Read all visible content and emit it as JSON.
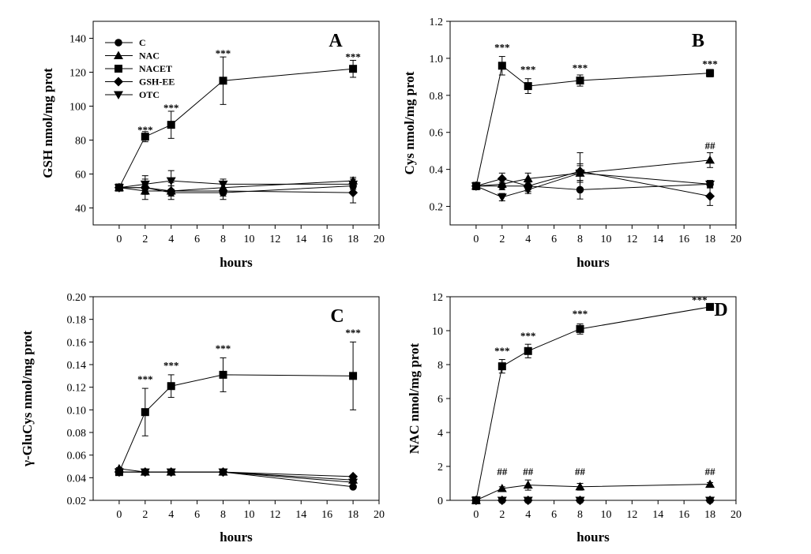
{
  "figure": {
    "title": ""
  },
  "legend": {
    "entries": [
      {
        "name": "C",
        "marker": "circle"
      },
      {
        "name": "NAC",
        "marker": "triangle-up"
      },
      {
        "name": "NACET",
        "marker": "square"
      },
      {
        "name": "GSH-EE",
        "marker": "diamond"
      },
      {
        "name": "OTC",
        "marker": "triangle-down"
      }
    ]
  },
  "chart_data": [
    {
      "type": "line",
      "panel": "A",
      "ylabel": "GSH nmol/mg prot",
      "xlabel": "hours",
      "xlim": [
        -2,
        20
      ],
      "xticks": [
        "0",
        "2",
        "4",
        "6",
        "8",
        "10",
        "12",
        "14",
        "16",
        "18",
        "20"
      ],
      "ylim": [
        30,
        150
      ],
      "yticks": [
        "40",
        "60",
        "80",
        "100",
        "120",
        "140"
      ],
      "x": [
        0,
        2,
        4,
        8,
        18
      ],
      "series": [
        {
          "name": "C",
          "values": [
            52,
            52,
            49,
            49,
            53
          ],
          "errors": [
            2,
            2,
            2,
            2,
            2
          ]
        },
        {
          "name": "NAC",
          "values": [
            52,
            50,
            50,
            52,
            56
          ],
          "errors": [
            2,
            2,
            3,
            2,
            2
          ]
        },
        {
          "name": "NACET",
          "values": [
            52,
            82,
            89,
            115,
            122
          ],
          "errors": [
            2,
            3,
            8,
            14,
            5
          ]
        },
        {
          "name": "GSH-EE",
          "values": [
            52,
            52,
            50,
            50,
            49
          ],
          "errors": [
            2,
            7,
            5,
            5,
            6
          ]
        },
        {
          "name": "OTC",
          "values": [
            52,
            54,
            56,
            54,
            54
          ],
          "errors": [
            2,
            3,
            6,
            3,
            3
          ]
        }
      ],
      "annotations": [
        {
          "text": "***",
          "x": 2,
          "y": 84
        },
        {
          "text": "***",
          "x": 4,
          "y": 97
        },
        {
          "text": "***",
          "x": 8,
          "y": 129
        },
        {
          "text": "***",
          "x": 18,
          "y": 127
        }
      ]
    },
    {
      "type": "line",
      "panel": "B",
      "ylabel": "Cys nmol/mg prot",
      "xlabel": "hours",
      "xlim": [
        -2,
        20
      ],
      "xticks": [
        "0",
        "2",
        "4",
        "6",
        "8",
        "10",
        "12",
        "14",
        "16",
        "18",
        "20"
      ],
      "ylim": [
        0.1,
        1.2
      ],
      "yticks": [
        "0.2",
        "0.4",
        "0.6",
        "0.8",
        "1.0",
        "1.2"
      ],
      "x": [
        0,
        2,
        4,
        8,
        18
      ],
      "series": [
        {
          "name": "C",
          "values": [
            0.31,
            0.31,
            0.31,
            0.29,
            0.32
          ],
          "errors": [
            0.02,
            0.02,
            0.02,
            0.05,
            0.02
          ]
        },
        {
          "name": "NAC",
          "values": [
            0.31,
            0.32,
            0.35,
            0.38,
            0.45
          ],
          "errors": [
            0.02,
            0.03,
            0.03,
            0.05,
            0.04
          ]
        },
        {
          "name": "NACET",
          "values": [
            0.31,
            0.96,
            0.85,
            0.88,
            0.92
          ],
          "errors": [
            0.02,
            0.05,
            0.04,
            0.03,
            0.02
          ]
        },
        {
          "name": "GSH-EE",
          "values": [
            0.31,
            0.35,
            0.31,
            0.39,
            0.255
          ],
          "errors": [
            0.02,
            0.03,
            0.03,
            0.1,
            0.05
          ]
        },
        {
          "name": "OTC",
          "values": [
            0.31,
            0.25,
            0.29,
            0.38,
            0.32
          ],
          "errors": [
            0.02,
            0.02,
            0.02,
            0.04,
            0.02
          ]
        }
      ],
      "annotations": [
        {
          "text": "***",
          "x": 2,
          "y": 1.04
        },
        {
          "text": "***",
          "x": 4,
          "y": 0.92
        },
        {
          "text": "***",
          "x": 8,
          "y": 0.93
        },
        {
          "text": "***",
          "x": 18,
          "y": 0.95
        },
        {
          "text": "##",
          "x": 18,
          "y": 0.51
        }
      ]
    },
    {
      "type": "line",
      "panel": "C",
      "ylabel": "γ-GluCys nmol/mg prot",
      "xlabel": "hours",
      "xlim": [
        -2,
        20
      ],
      "xticks": [
        "0",
        "2",
        "4",
        "6",
        "8",
        "10",
        "12",
        "14",
        "16",
        "18",
        "20"
      ],
      "ylim": [
        0.02,
        0.2
      ],
      "yticks": [
        "0.02",
        "0.04",
        "0.06",
        "0.08",
        "0.10",
        "0.12",
        "0.14",
        "0.16",
        "0.18",
        "0.20"
      ],
      "x": [
        0,
        2,
        4,
        8,
        18
      ],
      "series": [
        {
          "name": "C",
          "values": [
            0.045,
            0.045,
            0.045,
            0.045,
            0.032
          ],
          "errors": [
            0.001,
            0.001,
            0.001,
            0.001,
            0.001
          ]
        },
        {
          "name": "NAC",
          "values": [
            0.048,
            0.045,
            0.045,
            0.045,
            0.038
          ],
          "errors": [
            0.001,
            0.001,
            0.001,
            0.001,
            0.001
          ]
        },
        {
          "name": "NACET",
          "values": [
            0.045,
            0.098,
            0.121,
            0.131,
            0.13
          ],
          "errors": [
            0.001,
            0.021,
            0.01,
            0.015,
            0.03
          ]
        },
        {
          "name": "GSH-EE",
          "values": [
            0.045,
            0.045,
            0.045,
            0.045,
            0.041
          ],
          "errors": [
            0.001,
            0.001,
            0.001,
            0.001,
            0.001
          ]
        },
        {
          "name": "OTC",
          "values": [
            0.045,
            0.045,
            0.045,
            0.045,
            0.036
          ],
          "errors": [
            0.001,
            0.001,
            0.001,
            0.001,
            0.001
          ]
        }
      ],
      "annotations": [
        {
          "text": "***",
          "x": 2,
          "y": 0.124
        },
        {
          "text": "***",
          "x": 4,
          "y": 0.136
        },
        {
          "text": "***",
          "x": 8,
          "y": 0.151
        },
        {
          "text": "***",
          "x": 18,
          "y": 0.165
        }
      ]
    },
    {
      "type": "line",
      "panel": "D",
      "ylabel": "NAC nmol/mg prot",
      "xlabel": "hours",
      "xlim": [
        -2,
        20
      ],
      "xticks": [
        "0",
        "2",
        "4",
        "6",
        "8",
        "10",
        "12",
        "14",
        "16",
        "18",
        "20"
      ],
      "ylim": [
        0,
        12
      ],
      "yticks": [
        "0",
        "2",
        "4",
        "6",
        "8",
        "10",
        "12"
      ],
      "x": [
        0,
        2,
        4,
        8,
        18
      ],
      "series": [
        {
          "name": "C",
          "values": [
            0,
            0,
            0,
            0,
            0
          ],
          "errors": [
            0,
            0,
            0,
            0,
            0
          ]
        },
        {
          "name": "NAC",
          "values": [
            0,
            0.7,
            0.9,
            0.8,
            0.95
          ],
          "errors": [
            0,
            0.1,
            0.3,
            0.2,
            0.1
          ]
        },
        {
          "name": "NACET",
          "values": [
            0,
            7.9,
            8.8,
            10.1,
            11.4
          ],
          "errors": [
            0,
            0.4,
            0.4,
            0.3,
            0.1
          ]
        },
        {
          "name": "GSH-EE",
          "values": [
            0,
            0,
            0,
            0,
            0
          ],
          "errors": [
            0,
            0,
            0,
            0,
            0
          ]
        },
        {
          "name": "OTC",
          "values": [
            0,
            0,
            0,
            0,
            0
          ],
          "errors": [
            0,
            0,
            0,
            0,
            0
          ]
        }
      ],
      "annotations": [
        {
          "text": "***",
          "x": 2,
          "y": 8.6
        },
        {
          "text": "***",
          "x": 4,
          "y": 9.5
        },
        {
          "text": "***",
          "x": 8,
          "y": 10.8
        },
        {
          "text": "***",
          "x": 17.2,
          "y": 11.6
        },
        {
          "text": "##",
          "x": 2,
          "y": 1.5
        },
        {
          "text": "##",
          "x": 4,
          "y": 1.5
        },
        {
          "text": "##",
          "x": 8,
          "y": 1.5
        },
        {
          "text": "##",
          "x": 18,
          "y": 1.5
        }
      ]
    }
  ]
}
